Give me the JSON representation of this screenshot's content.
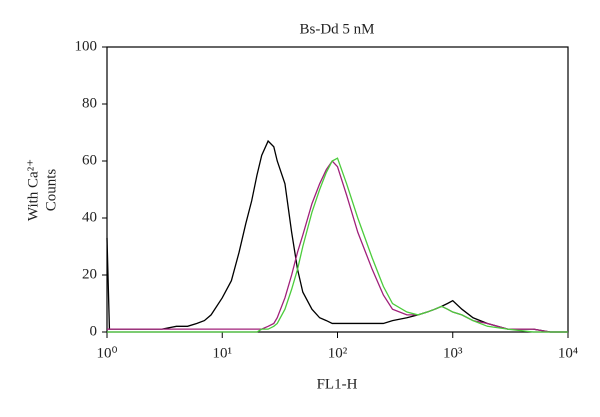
{
  "chart_data": {
    "type": "line",
    "title": "Bs-Dd 5 nM",
    "xlabel": "FL1-H",
    "ylabel": [
      "With Ca²⁺",
      "Counts"
    ],
    "xscale": "log",
    "x": [
      1,
      1.05,
      1.5,
      2,
      3,
      4,
      5,
      6,
      7,
      8,
      10,
      12,
      14,
      16,
      18,
      20,
      22,
      25,
      28,
      30,
      35,
      40,
      45,
      50,
      60,
      70,
      80,
      90,
      100,
      120,
      150,
      200,
      250,
      300,
      400,
      500,
      600,
      700,
      800,
      900,
      1000,
      1200,
      1500,
      2000,
      3000,
      5000,
      7000,
      10000
    ],
    "series": [
      {
        "color": "#000000",
        "values": [
          33,
          1,
          1,
          1,
          1,
          2,
          2,
          3,
          4,
          6,
          12,
          18,
          28,
          38,
          46,
          55,
          62,
          67,
          65,
          60,
          52,
          35,
          22,
          14,
          8,
          5,
          4,
          3,
          3,
          3,
          3,
          3,
          3,
          4,
          5,
          6,
          7,
          8,
          9,
          10,
          11,
          8,
          5,
          3,
          1,
          1,
          0,
          0
        ]
      },
      {
        "color": "#a0207a",
        "values": [
          1,
          1,
          1,
          1,
          1,
          1,
          1,
          1,
          1,
          1,
          1,
          1,
          1,
          1,
          1,
          1,
          1,
          2,
          3,
          5,
          12,
          20,
          28,
          34,
          45,
          52,
          57,
          60,
          58,
          48,
          35,
          22,
          13,
          8,
          6,
          6,
          7,
          8,
          9,
          8,
          7,
          6,
          4,
          3,
          1,
          1,
          0,
          0
        ]
      },
      {
        "color": "#4ccc3c",
        "values": [
          0,
          0,
          0,
          0,
          0,
          0,
          0,
          0,
          0,
          0,
          0,
          0,
          0,
          0,
          0,
          0,
          1,
          1,
          2,
          3,
          8,
          15,
          22,
          30,
          42,
          50,
          56,
          60,
          61,
          52,
          40,
          26,
          16,
          10,
          7,
          6,
          7,
          8,
          9,
          8,
          7,
          6,
          4,
          2,
          1,
          0,
          0,
          0
        ]
      }
    ],
    "xlim": [
      1,
      10000
    ],
    "xticks": [
      {
        "value": 1,
        "label": "10⁰"
      },
      {
        "value": 10,
        "label": "10¹"
      },
      {
        "value": 100,
        "label": "10²"
      },
      {
        "value": 1000,
        "label": "10³"
      },
      {
        "value": 10000,
        "label": "10⁴"
      }
    ],
    "ylim": [
      0,
      100
    ],
    "yticks": [
      0,
      20,
      40,
      60,
      80,
      100
    ],
    "grid": false
  }
}
